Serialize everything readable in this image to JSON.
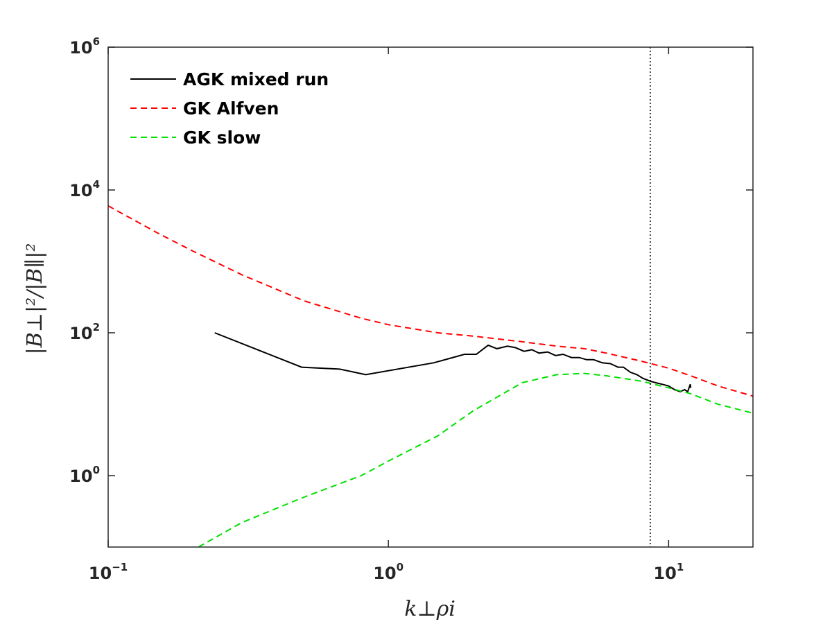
{
  "chart_data": {
    "type": "line",
    "xscale": "log",
    "yscale": "log",
    "xlim": [
      0.1,
      20
    ],
    "ylim": [
      0.1,
      1000000
    ],
    "xlabel": "k⊥ρi",
    "ylabel": "|B⊥|²/|B∥|²",
    "x_ticks": [
      {
        "value": 0.1,
        "base": "10",
        "exp": "−1"
      },
      {
        "value": 1,
        "base": "10",
        "exp": "0"
      },
      {
        "value": 10,
        "base": "10",
        "exp": "1"
      }
    ],
    "y_ticks": [
      {
        "value": 1,
        "base": "10",
        "exp": "0"
      },
      {
        "value": 100,
        "base": "10",
        "exp": "2"
      },
      {
        "value": 10000,
        "base": "10",
        "exp": "4"
      },
      {
        "value": 1000000,
        "base": "10",
        "exp": "6"
      }
    ],
    "legend_position": "top-left",
    "series": [
      {
        "name": "AGK mixed run",
        "color": "#000000",
        "style": "solid",
        "points": [
          [
            0.24,
            100
          ],
          [
            0.49,
            33
          ],
          [
            0.67,
            31
          ],
          [
            0.83,
            26
          ],
          [
            1.45,
            38
          ],
          [
            1.87,
            50
          ],
          [
            2.06,
            50
          ],
          [
            2.27,
            67
          ],
          [
            2.44,
            60
          ],
          [
            2.66,
            65
          ],
          [
            2.84,
            62
          ],
          [
            3.05,
            55
          ],
          [
            3.25,
            58
          ],
          [
            3.45,
            52
          ],
          [
            3.7,
            54
          ],
          [
            3.95,
            48
          ],
          [
            4.2,
            50
          ],
          [
            4.5,
            45
          ],
          [
            4.8,
            45
          ],
          [
            5.1,
            42
          ],
          [
            5.4,
            42
          ],
          [
            5.8,
            38
          ],
          [
            6.2,
            37
          ],
          [
            6.6,
            33
          ],
          [
            6.9,
            33
          ],
          [
            7.3,
            28
          ],
          [
            7.7,
            26
          ],
          [
            8.1,
            23
          ],
          [
            8.6,
            21
          ],
          [
            9.0,
            20
          ],
          [
            9.5,
            19
          ],
          [
            10.0,
            18
          ],
          [
            10.5,
            16
          ],
          [
            11.0,
            15
          ],
          [
            11.4,
            16
          ],
          [
            11.7,
            15
          ],
          [
            11.95,
            19
          ],
          [
            12.0,
            17
          ]
        ]
      },
      {
        "name": "GK Alfven",
        "color": "#ff0000",
        "style": "dashed",
        "points": [
          [
            0.1,
            6000
          ],
          [
            0.15,
            2500
          ],
          [
            0.2,
            1400
          ],
          [
            0.3,
            650
          ],
          [
            0.5,
            280
          ],
          [
            0.8,
            160
          ],
          [
            1.0,
            130
          ],
          [
            1.5,
            100
          ],
          [
            2.0,
            90
          ],
          [
            3.0,
            75
          ],
          [
            4.0,
            65
          ],
          [
            5.0,
            60
          ],
          [
            6.0,
            52
          ],
          [
            8.0,
            40
          ],
          [
            10.0,
            32
          ],
          [
            12.0,
            25
          ],
          [
            15.0,
            18
          ],
          [
            20.0,
            13
          ]
        ]
      },
      {
        "name": "GK slow",
        "color": "#00e000",
        "style": "dashed",
        "points": [
          [
            0.21,
            0.1
          ],
          [
            0.3,
            0.22
          ],
          [
            0.5,
            0.5
          ],
          [
            0.8,
            1.0
          ],
          [
            1.0,
            1.6
          ],
          [
            1.5,
            3.6
          ],
          [
            2.0,
            8
          ],
          [
            3.0,
            20
          ],
          [
            4.0,
            26
          ],
          [
            5.0,
            27
          ],
          [
            6.0,
            25
          ],
          [
            8.0,
            21
          ],
          [
            10.0,
            17
          ],
          [
            12.0,
            14
          ],
          [
            15.0,
            10
          ],
          [
            20.0,
            7.5
          ]
        ]
      }
    ],
    "vertical_line": {
      "x": 8.6,
      "color": "#000000",
      "style": "dotted"
    }
  }
}
